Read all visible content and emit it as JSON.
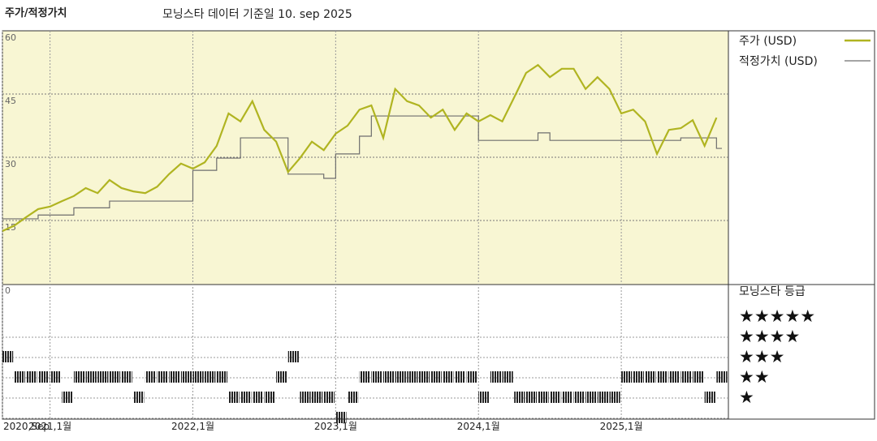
{
  "chart_data": {
    "type": "line",
    "title": "주가/적정가치",
    "subtitle": "모닝스타 데이터 기준일 10. sep 2025",
    "x": [
      "2020-09",
      "2020-10",
      "2020-11",
      "2020-12",
      "2021-01",
      "2021-02",
      "2021-03",
      "2021-04",
      "2021-05",
      "2021-06",
      "2021-07",
      "2021-08",
      "2021-09",
      "2021-10",
      "2021-11",
      "2021-12",
      "2022-01",
      "2022-02",
      "2022-03",
      "2022-04",
      "2022-05",
      "2022-06",
      "2022-07",
      "2022-08",
      "2022-09",
      "2022-10",
      "2022-11",
      "2022-12",
      "2023-01",
      "2023-02",
      "2023-03",
      "2023-04",
      "2023-05",
      "2023-06",
      "2023-07",
      "2023-08",
      "2023-09",
      "2023-10",
      "2023-11",
      "2023-12",
      "2024-01",
      "2024-02",
      "2024-03",
      "2024-04",
      "2024-05",
      "2024-06",
      "2024-07",
      "2024-08",
      "2024-09",
      "2024-10",
      "2024-11",
      "2024-12",
      "2025-01",
      "2025-02",
      "2025-03",
      "2025-04",
      "2025-05",
      "2025-06",
      "2025-07",
      "2025-08",
      "2025-09"
    ],
    "xlim": [
      "2020-09",
      "2025-10"
    ],
    "xticks": [
      {
        "value": "2020-09",
        "label": "2020,Sep"
      },
      {
        "value": "2021-01",
        "label": "2021,1월"
      },
      {
        "value": "2022-01",
        "label": "2022,1월"
      },
      {
        "value": "2023-01",
        "label": "2023,1월"
      },
      {
        "value": "2024-01",
        "label": "2024,1월"
      },
      {
        "value": "2025-01",
        "label": "2025,1월"
      }
    ],
    "ylim": [
      0,
      60
    ],
    "yticks": [
      0,
      15,
      30,
      45,
      60
    ],
    "series": [
      {
        "name": "주가 (USD)",
        "color": "#b0b421",
        "values": [
          12.5,
          13.8,
          15.8,
          17.7,
          18.3,
          19.6,
          20.8,
          22.7,
          21.5,
          24.6,
          22.7,
          21.9,
          21.5,
          23,
          26,
          28.5,
          27.3,
          28.8,
          32.7,
          40.4,
          38.5,
          43.3,
          36.5,
          33.7,
          26.5,
          29.8,
          33.7,
          31.7,
          35.6,
          37.5,
          41.3,
          42.3,
          34.6,
          46.2,
          43.3,
          42.3,
          39.4,
          41.3,
          36.5,
          40.4,
          38.5,
          40,
          38.5,
          44.2,
          50,
          51.9,
          49,
          51,
          51,
          46.2,
          49,
          46.2,
          40.4,
          41.3,
          38.5,
          30.8,
          36.5,
          36.9,
          38.8,
          32.7,
          39.4
        ]
      },
      {
        "name": "적정가치 (USD)",
        "color": "#6e6e6e",
        "step": true,
        "values": [
          15.4,
          15.4,
          15.4,
          16.3,
          16.3,
          16.3,
          18,
          18,
          18,
          19.6,
          19.6,
          19.6,
          19.6,
          19.6,
          19.6,
          19.6,
          26.9,
          26.9,
          29.8,
          29.8,
          34.6,
          34.6,
          34.6,
          34.6,
          26,
          26,
          26,
          25,
          30.8,
          30.8,
          35,
          39.8,
          39.8,
          39.8,
          39.8,
          39.8,
          39.8,
          39.8,
          39.8,
          39.8,
          34,
          34,
          34,
          34,
          34,
          35.8,
          34,
          34,
          34,
          34,
          34,
          34,
          34,
          34,
          34,
          34,
          34,
          34.6,
          34.6,
          34.6,
          32.1
        ]
      }
    ],
    "rating_title": "모닝스타 등급",
    "rating_levels": [
      {
        "value": 5,
        "label": "★★★★★"
      },
      {
        "value": 4,
        "label": "★★★★"
      },
      {
        "value": 3,
        "label": "★★★"
      },
      {
        "value": 2,
        "label": "★★"
      },
      {
        "value": 1,
        "label": "★"
      }
    ],
    "ratings": [
      4,
      3,
      3,
      3,
      3,
      2,
      3,
      3,
      3,
      3,
      3,
      2,
      3,
      3,
      3,
      3,
      3,
      3,
      3,
      2,
      2,
      2,
      2,
      3,
      4,
      2,
      2,
      2,
      1,
      2,
      3,
      3,
      3,
      3,
      3,
      3,
      3,
      3,
      3,
      3,
      2,
      3,
      3,
      2,
      2,
      2,
      2,
      2,
      2,
      2,
      2,
      2,
      3,
      3,
      3,
      3,
      3,
      3,
      3,
      2,
      3
    ],
    "grid": true
  }
}
